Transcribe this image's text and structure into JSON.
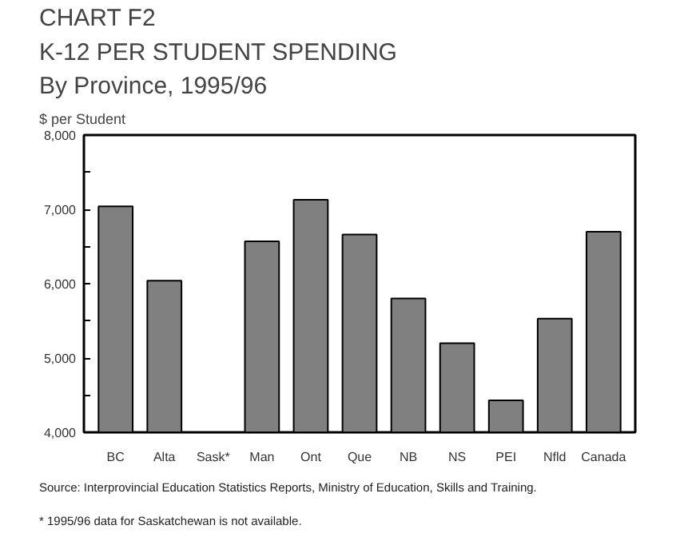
{
  "chart_data": {
    "type": "bar",
    "title": "CHART F2\nK-12 PER STUDENT SPENDING\nBy Province, 1995/96",
    "ylabel": "$ per Student",
    "categories": [
      "BC",
      "Alta",
      "Sask*",
      "Man",
      "Ont",
      "Que",
      "NB",
      "NS",
      "PEI",
      "Nfld",
      "Canada"
    ],
    "values": [
      7040,
      6040,
      null,
      6570,
      7130,
      6660,
      5800,
      5200,
      4430,
      5530,
      6700
    ],
    "color": "#808080",
    "ylim": [
      4000,
      8000
    ],
    "yticks": [
      {
        "value": 4000,
        "label": "4,000"
      },
      {
        "value": 4500,
        "label": null
      },
      {
        "value": 5000,
        "label": "5,000"
      },
      {
        "value": 5500,
        "label": null
      },
      {
        "value": 6000,
        "label": "6,000"
      },
      {
        "value": 6500,
        "label": null
      },
      {
        "value": 7000,
        "label": "7,000"
      },
      {
        "value": 7500,
        "label": null
      },
      {
        "value": 8000,
        "label": "8,000"
      }
    ],
    "grid": false,
    "annotations": [
      "Source: Interprovincial Education Statistics Reports, Ministry of Education, Skills and Training.",
      "*  1995/96 data for Saskatchewan is not available."
    ]
  }
}
